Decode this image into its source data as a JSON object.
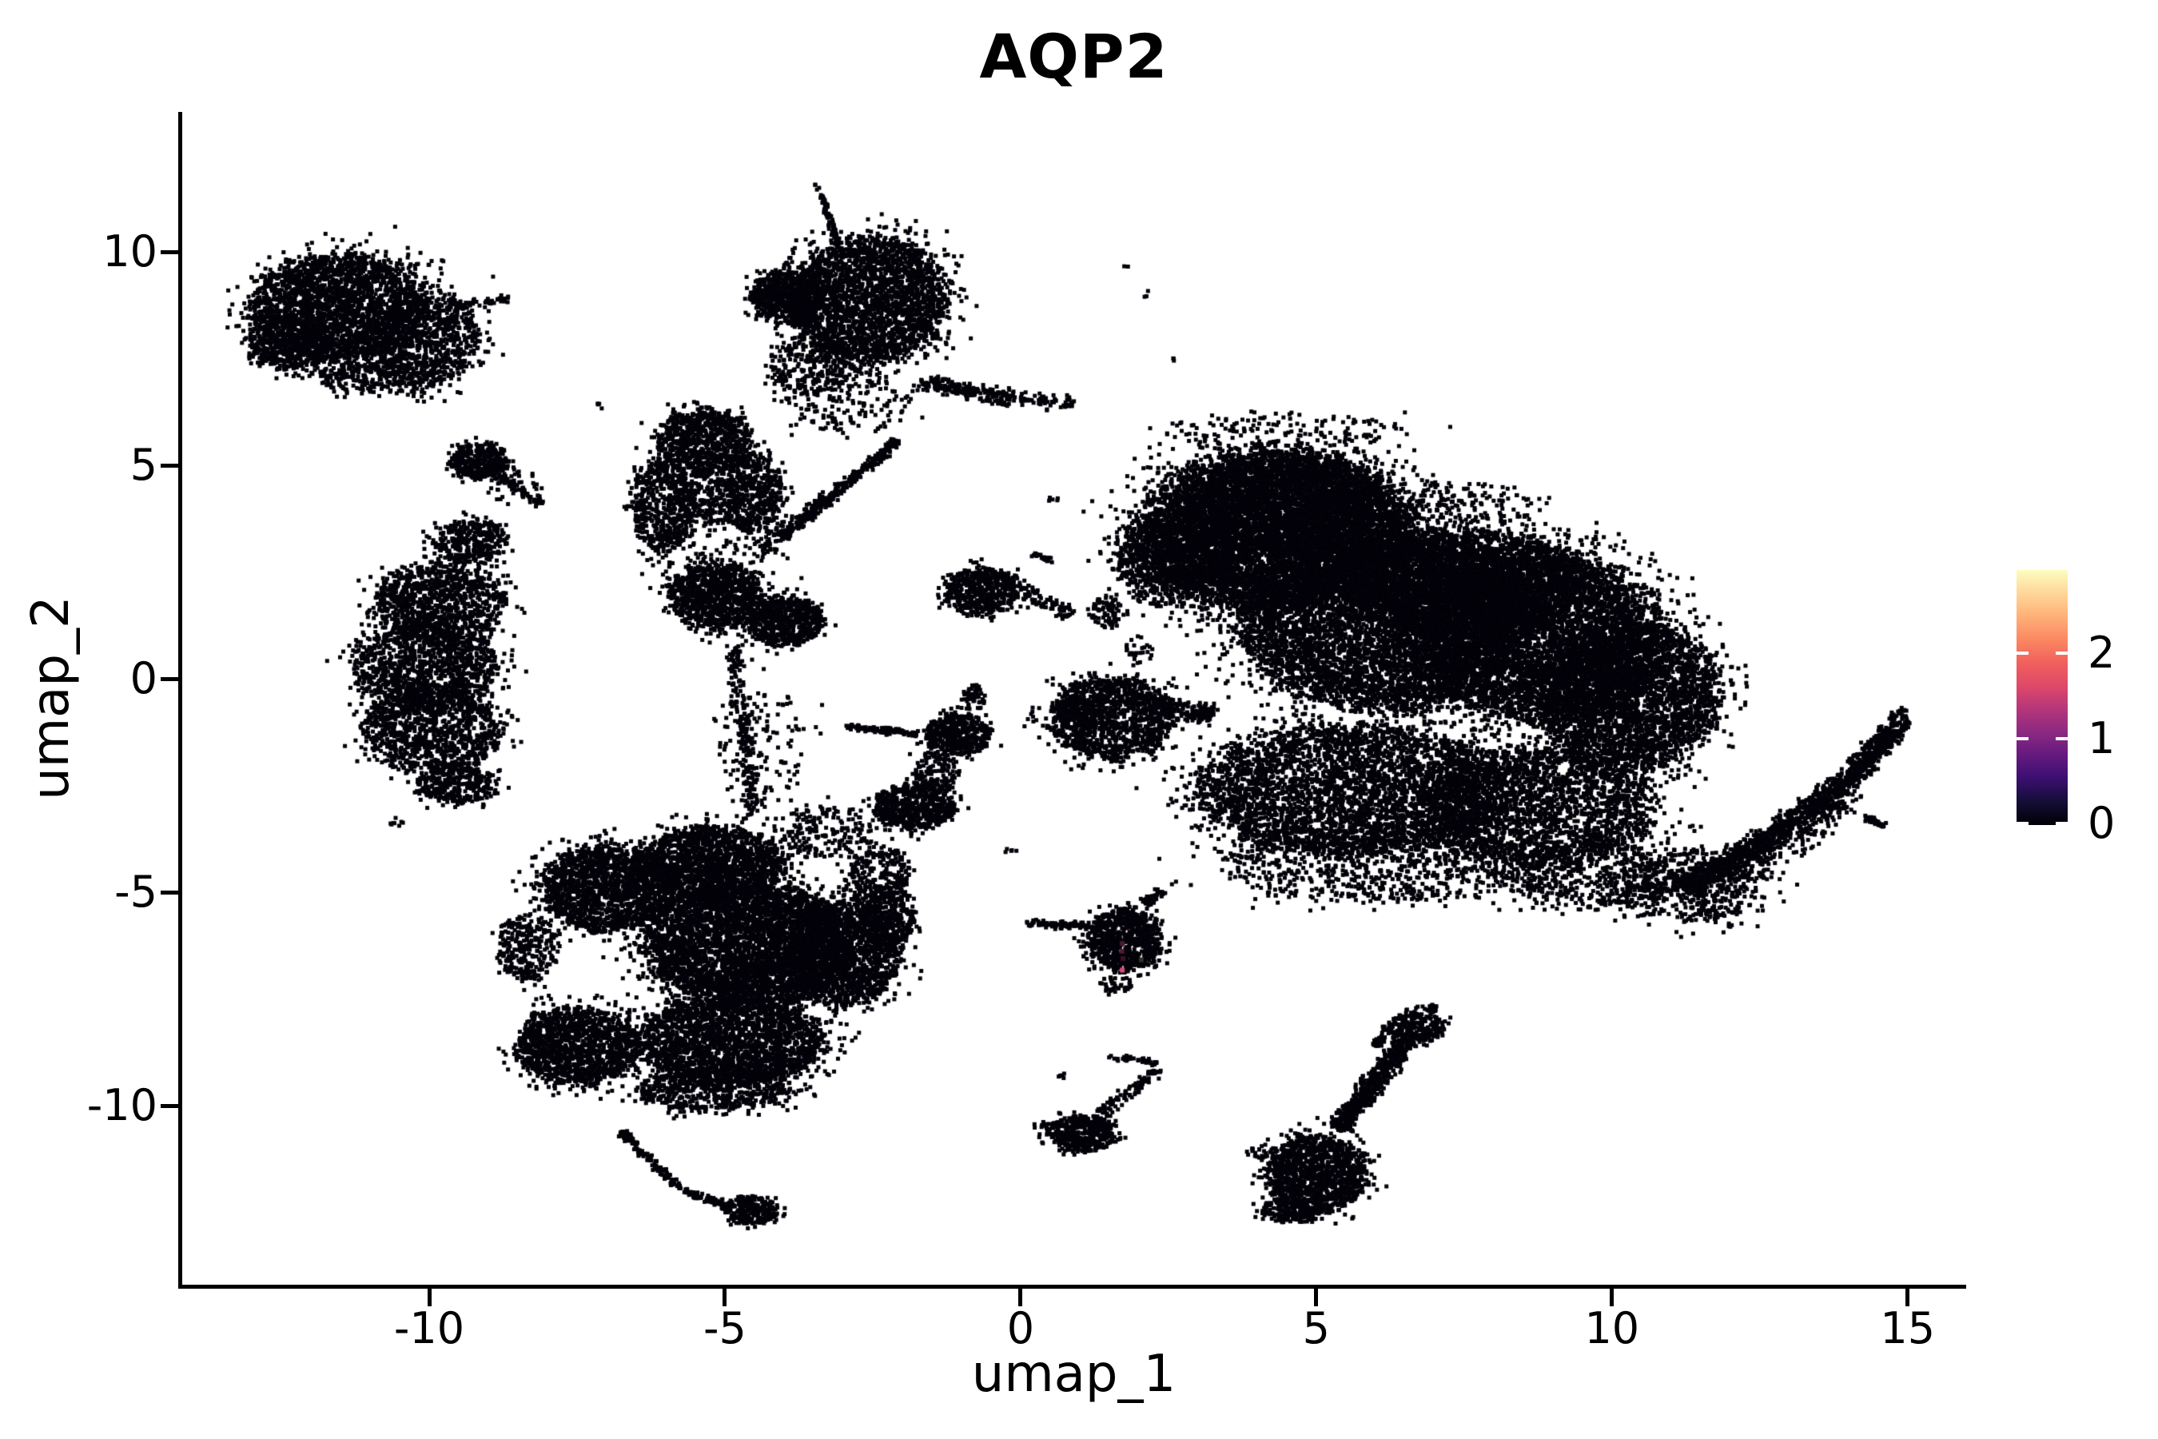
{
  "chart_data": {
    "type": "scatter",
    "title": "AQP2",
    "xlabel": "umap_1",
    "ylabel": "umap_2",
    "xlim": [
      -14.19,
      15.99
    ],
    "ylim": [
      -14.19,
      13.28
    ],
    "xticks": [
      "-10",
      "-5",
      "0",
      "5",
      "10",
      "15"
    ],
    "xtick_values": [
      -10,
      -5,
      0,
      5,
      10,
      15
    ],
    "yticks": [
      "10",
      "5",
      "0",
      "-5",
      "-10"
    ],
    "ytick_values": [
      10,
      5,
      0,
      -5,
      -10
    ],
    "grid": false,
    "background": "#ffffff",
    "point_color": "#030209",
    "point_size": 5,
    "legend_position": "right",
    "colorbar": {
      "ticks": [
        "0",
        "1",
        "2"
      ],
      "tick_values": [
        0,
        1,
        2
      ],
      "max_value": 2.96,
      "gradient_bottom_to_top": [
        "#000004",
        "#140e36",
        "#3b0f70",
        "#641a80",
        "#8c2981",
        "#b5367a",
        "#de4968",
        "#f1605d",
        "#fb8861",
        "#feb078",
        "#fed799",
        "#fcfdbf"
      ]
    },
    "clusters": [
      [
        "b",
        -11.5,
        8.7,
        1.5,
        1.25,
        2400
      ],
      [
        "b",
        -10.15,
        7.95,
        1.0,
        1.05,
        800
      ],
      [
        "b",
        -12.35,
        7.85,
        0.7,
        0.6,
        450
      ],
      [
        "b",
        -10.9,
        7.05,
        1.1,
        0.38,
        230
      ],
      [
        "s",
        -9.55,
        8.75,
        -8.65,
        8.9,
        0.12,
        50
      ],
      [
        "b",
        -11.3,
        8.4,
        1.95,
        1.6,
        200
      ],
      [
        "b",
        -9.15,
        5.1,
        0.5,
        0.4,
        400
      ],
      [
        "s",
        -8.95,
        4.85,
        -8.1,
        4.1,
        0.15,
        70
      ],
      [
        "b",
        -8.55,
        4.5,
        0.5,
        0.45,
        40
      ],
      [
        "b",
        -9.3,
        3.2,
        0.62,
        0.5,
        350
      ],
      [
        "b",
        -9.85,
        1.8,
        1.1,
        0.95,
        1000
      ],
      [
        "b",
        -10.05,
        0.3,
        1.2,
        1.0,
        1200
      ],
      [
        "b",
        -9.95,
        -1.2,
        1.15,
        1.0,
        1100
      ],
      [
        "b",
        -9.55,
        -2.5,
        0.65,
        0.45,
        320
      ],
      [
        "b",
        -10.55,
        -3.35,
        0.13,
        0.1,
        8
      ],
      [
        "b",
        -2.55,
        8.9,
        1.3,
        1.45,
        2600
      ],
      [
        "b",
        -3.95,
        8.95,
        0.6,
        0.65,
        500
      ],
      [
        "s",
        -4.5,
        9.05,
        -3.6,
        8.75,
        0.3,
        140
      ],
      [
        "s",
        -3.35,
        11.35,
        -3.1,
        10.15,
        0.09,
        70
      ],
      [
        "b",
        -3.42,
        11.55,
        0.07,
        0.1,
        4
      ],
      [
        "b",
        -3.5,
        7.35,
        0.75,
        0.7,
        300
      ],
      [
        "s",
        -1.7,
        6.95,
        -0.1,
        6.55,
        0.3,
        200
      ],
      [
        "s",
        -0.1,
        6.55,
        0.9,
        6.45,
        0.25,
        60
      ],
      [
        "b",
        -2.9,
        6.5,
        1.1,
        0.8,
        170
      ],
      [
        "b",
        -5.35,
        5.55,
        0.8,
        0.75,
        800
      ],
      [
        "b",
        -6.05,
        4.05,
        0.55,
        1.05,
        550
      ],
      [
        "b",
        -4.55,
        4.35,
        0.5,
        0.95,
        480
      ],
      [
        "b",
        -5.3,
        4.3,
        0.6,
        0.7,
        200
      ],
      [
        "b",
        -5.15,
        1.95,
        0.75,
        0.75,
        900
      ],
      [
        "b",
        -4.0,
        1.35,
        0.62,
        0.58,
        650
      ],
      [
        "b",
        -5.1,
        3.2,
        1.1,
        2.2,
        280
      ],
      [
        "s",
        -4.05,
        3.3,
        -2.05,
        5.6,
        0.16,
        320
      ],
      [
        "s",
        -4.55,
        2.9,
        -3.25,
        4.3,
        0.3,
        80
      ],
      [
        "s",
        -4.85,
        0.8,
        -4.5,
        -3.2,
        0.22,
        210
      ],
      [
        "b",
        -4.4,
        -1.6,
        0.8,
        1.5,
        140
      ],
      [
        "b",
        -1.05,
        -1.3,
        0.55,
        0.48,
        450
      ],
      [
        "b",
        -1.8,
        -3.0,
        0.68,
        0.52,
        620
      ],
      [
        "s",
        -2.95,
        -1.1,
        -1.75,
        -1.3,
        0.12,
        100
      ],
      [
        "b",
        -0.8,
        -0.45,
        0.2,
        0.3,
        55
      ],
      [
        "b",
        -1.45,
        -2.2,
        0.4,
        0.5,
        140
      ],
      [
        "b",
        -0.65,
        2.05,
        0.6,
        0.55,
        560
      ],
      [
        "s",
        -0.05,
        2.15,
        0.85,
        1.5,
        0.25,
        80
      ],
      [
        "s",
        0.2,
        2.95,
        0.55,
        2.75,
        0.1,
        22
      ],
      [
        "b",
        4.35,
        3.5,
        2.3,
        1.85,
        5800
      ],
      [
        "b",
        4.5,
        4.1,
        1.6,
        1.1,
        2200
      ],
      [
        "b",
        2.6,
        2.8,
        1.0,
        1.1,
        1000
      ],
      [
        "b",
        1.45,
        1.55,
        0.3,
        0.35,
        80
      ],
      [
        "b",
        1.55,
        -0.9,
        1.05,
        0.95,
        1250
      ],
      [
        "b",
        0.95,
        -0.8,
        0.3,
        0.4,
        140
      ],
      [
        "s",
        2.2,
        -0.6,
        3.3,
        -0.9,
        0.35,
        160
      ],
      [
        "b",
        2.0,
        0.65,
        0.25,
        0.3,
        28
      ],
      [
        "b",
        6.2,
        1.4,
        2.5,
        2.1,
        6500
      ],
      [
        "b",
        7.5,
        2.3,
        2.0,
        1.2,
        2400
      ],
      [
        "b",
        8.7,
        1.0,
        2.1,
        2.0,
        5000
      ],
      [
        "b",
        10.3,
        -0.4,
        1.5,
        1.7,
        3200
      ],
      [
        "b",
        5.6,
        -2.6,
        2.6,
        1.5,
        3800
      ],
      [
        "b",
        8.8,
        -3.0,
        1.9,
        1.4,
        2300
      ],
      [
        "b",
        6.2,
        -4.35,
        2.8,
        0.9,
        850
      ],
      [
        "b",
        9.8,
        -4.6,
        1.5,
        0.8,
        480
      ],
      [
        "b",
        11.3,
        -4.9,
        1.3,
        0.85,
        420
      ],
      [
        "s",
        11.2,
        -4.9,
        12.6,
        -3.8,
        0.45,
        550
      ],
      [
        "s",
        12.6,
        -3.8,
        13.9,
        -2.5,
        0.4,
        480
      ],
      [
        "s",
        13.9,
        -2.5,
        14.75,
        -1.2,
        0.33,
        380
      ],
      [
        "b",
        14.85,
        -1.0,
        0.18,
        0.28,
        60
      ],
      [
        "s",
        11.5,
        -5.45,
        14.2,
        -2.65,
        0.5,
        180
      ],
      [
        "s",
        14.25,
        -3.2,
        14.6,
        -3.45,
        0.12,
        36
      ],
      [
        "b",
        13.9,
        -3.0,
        0.1,
        0.08,
        8
      ],
      [
        "b",
        4.5,
        5.85,
        2.0,
        0.4,
        140
      ],
      [
        "b",
        7.6,
        4.1,
        1.3,
        0.5,
        130
      ],
      [
        "b",
        1.8,
        9.65,
        0.05,
        0.07,
        2
      ],
      [
        "b",
        2.1,
        9.05,
        0.06,
        0.1,
        3
      ],
      [
        "b",
        1.75,
        -6.1,
        0.62,
        0.75,
        820
      ],
      [
        "s",
        2.1,
        -5.25,
        2.42,
        -4.95,
        0.16,
        55
      ],
      [
        "s",
        0.1,
        -5.72,
        1.15,
        -5.8,
        0.12,
        85
      ],
      [
        "b",
        1.6,
        -7.15,
        0.3,
        0.2,
        40
      ],
      [
        "b",
        1.05,
        -10.65,
        0.55,
        0.42,
        480
      ],
      [
        "s",
        1.35,
        -10.2,
        2.35,
        -9.15,
        0.2,
        85
      ],
      [
        "s",
        1.5,
        -8.85,
        2.3,
        -9.0,
        0.1,
        35
      ],
      [
        "b",
        0.72,
        -9.3,
        0.08,
        0.07,
        6
      ],
      [
        "b",
        0.35,
        -10.45,
        0.15,
        0.12,
        10
      ],
      [
        "b",
        5.0,
        -11.6,
        0.85,
        0.9,
        1300
      ],
      [
        "b",
        4.6,
        -12.45,
        0.5,
        0.3,
        180
      ],
      [
        "s",
        5.35,
        -10.55,
        6.55,
        -8.45,
        0.3,
        520
      ],
      [
        "b",
        6.7,
        -8.15,
        0.45,
        0.35,
        230
      ],
      [
        "s",
        6.3,
        -8.05,
        6.0,
        -8.6,
        0.12,
        50
      ],
      [
        "b",
        6.95,
        -7.72,
        0.12,
        0.1,
        16
      ],
      [
        "b",
        4.05,
        -11.1,
        0.22,
        0.15,
        22
      ],
      [
        "b",
        -6.95,
        -4.9,
        1.15,
        1.0,
        1800
      ],
      [
        "b",
        -5.2,
        -4.3,
        1.15,
        0.85,
        1600
      ],
      [
        "b",
        -4.6,
        -6.2,
        1.7,
        1.45,
        4200
      ],
      [
        "b",
        -3.0,
        -6.4,
        0.95,
        1.25,
        1500
      ],
      [
        "b",
        -2.25,
        -5.6,
        0.45,
        0.8,
        320
      ],
      [
        "b",
        -7.5,
        -8.6,
        1.0,
        0.9,
        1400
      ],
      [
        "b",
        -4.9,
        -8.5,
        1.55,
        1.05,
        2300
      ],
      [
        "b",
        -5.2,
        -9.65,
        1.3,
        0.5,
        550
      ],
      [
        "b",
        -8.35,
        -6.3,
        0.5,
        0.8,
        280
      ],
      [
        "s",
        -6.75,
        -10.6,
        -5.7,
        -12.0,
        0.14,
        120
      ],
      [
        "s",
        -5.7,
        -12.0,
        -4.9,
        -12.35,
        0.12,
        75
      ],
      [
        "b",
        -4.55,
        -12.45,
        0.45,
        0.33,
        270
      ],
      [
        "b",
        -3.3,
        -3.6,
        0.8,
        0.6,
        190
      ],
      [
        "b",
        -2.4,
        -4.6,
        0.5,
        0.7,
        240
      ],
      [
        "b",
        0.55,
        4.2,
        0.1,
        0.08,
        5
      ],
      [
        "b",
        -7.1,
        6.4,
        0.08,
        0.08,
        4
      ],
      [
        "b",
        2.6,
        7.5,
        0.07,
        0.07,
        3
      ],
      [
        "b",
        -0.2,
        -4.0,
        0.1,
        0.08,
        5
      ]
    ],
    "expressing_cells": [
      {
        "x": 1.72,
        "y": -6.2,
        "color": "#4a1a33"
      },
      {
        "x": 1.71,
        "y": -6.38,
        "color": "#521c2e"
      },
      {
        "x": 1.73,
        "y": -6.55,
        "color": "#3a1026"
      },
      {
        "x": 2.04,
        "y": -6.58,
        "color": "#33301a"
      },
      {
        "x": 1.72,
        "y": -6.82,
        "color": "#d9487f"
      }
    ]
  }
}
